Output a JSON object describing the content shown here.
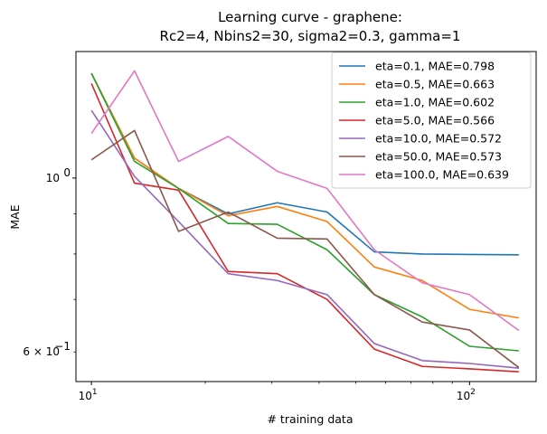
{
  "chart_data": {
    "type": "line",
    "title_lines": [
      "Learning curve - graphene:",
      "Rc2=4, Nbins2=30, sigma2=0.3, gamma=1"
    ],
    "xlabel": "# training data",
    "ylabel": "MAE",
    "x_scale": "log",
    "y_scale": "log",
    "xlim": [
      9.1,
      150
    ],
    "ylim": [
      0.55,
      1.45
    ],
    "grid": false,
    "legend_position": "top-right",
    "x_ticks": [
      {
        "value": 10,
        "base": "10",
        "exp": "1"
      },
      {
        "value": 100,
        "base": "10",
        "exp": "2"
      }
    ],
    "y_ticks": [
      {
        "value": 1.0,
        "label": "10",
        "exp": "0"
      },
      {
        "value": 0.6,
        "label": "6 × 10",
        "exp": "−1"
      }
    ],
    "x": [
      10,
      13,
      17,
      23,
      31,
      42,
      56,
      75,
      100,
      135
    ],
    "series": [
      {
        "name": "eta=0.1, MAE=0.798",
        "color": "#1f77b4",
        "values": [
          1.36,
          1.06,
          0.97,
          0.9,
          0.93,
          0.905,
          0.805,
          0.8,
          0.799,
          0.798
        ]
      },
      {
        "name": "eta=0.5, MAE=0.663",
        "color": "#ff7f0e",
        "values": [
          1.36,
          1.06,
          0.97,
          0.895,
          0.92,
          0.88,
          0.77,
          0.74,
          0.68,
          0.663
        ]
      },
      {
        "name": "eta=1.0, MAE=0.602",
        "color": "#2ca02c",
        "values": [
          1.36,
          1.05,
          0.97,
          0.875,
          0.873,
          0.81,
          0.71,
          0.665,
          0.61,
          0.602
        ]
      },
      {
        "name": "eta=5.0, MAE=0.566",
        "color": "#d62728",
        "values": [
          1.32,
          0.985,
          0.965,
          0.76,
          0.755,
          0.7,
          0.605,
          0.575,
          0.571,
          0.566
        ]
      },
      {
        "name": "eta=10.0, MAE=0.572",
        "color": "#9467bd",
        "values": [
          1.22,
          1.005,
          0.88,
          0.755,
          0.74,
          0.71,
          0.615,
          0.585,
          0.58,
          0.572
        ]
      },
      {
        "name": "eta=50.0, MAE=0.573",
        "color": "#8c564b",
        "values": [
          1.055,
          1.15,
          0.855,
          0.905,
          0.838,
          0.836,
          0.71,
          0.655,
          0.64,
          0.573
        ]
      },
      {
        "name": "eta=100.0, MAE=0.639",
        "color": "#e377c2",
        "values": [
          1.14,
          1.37,
          1.05,
          1.13,
          1.02,
          0.97,
          0.81,
          0.735,
          0.71,
          0.639
        ]
      }
    ]
  }
}
